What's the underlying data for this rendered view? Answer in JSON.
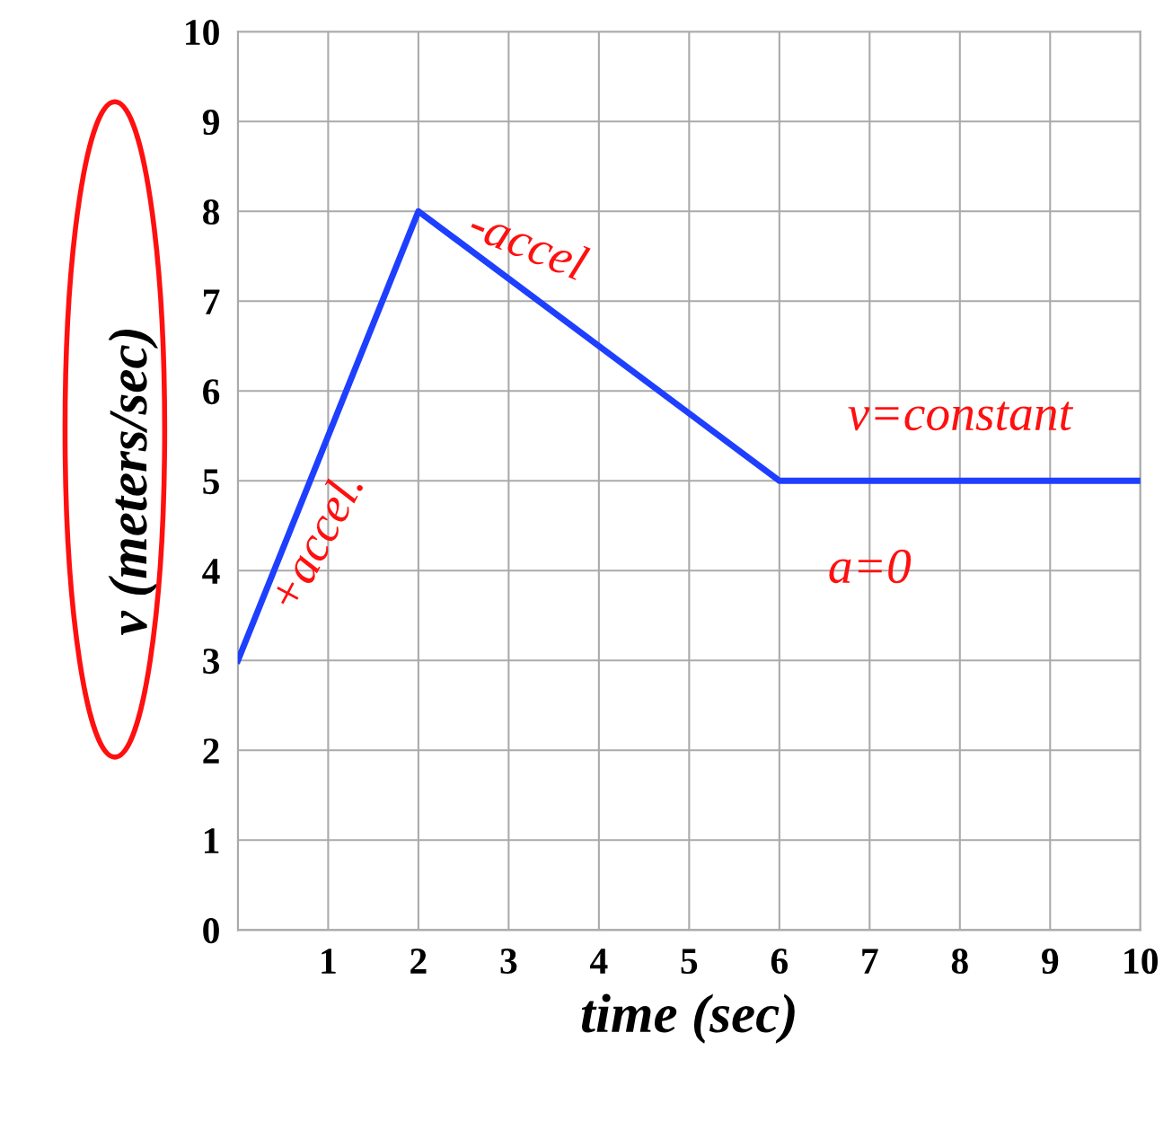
{
  "chart_data": {
    "type": "line",
    "xlabel": "time (sec)",
    "ylabel": "v (meters/sec)",
    "x": [
      0,
      2,
      6,
      10
    ],
    "series": [
      {
        "color": "#1f3fff",
        "values": [
          3,
          8,
          5,
          5
        ]
      }
    ],
    "xlim": [
      0,
      10
    ],
    "ylim": [
      0,
      10
    ],
    "xticks": [
      {
        "value": 0,
        "label": null
      },
      1,
      2,
      3,
      4,
      5,
      6,
      7,
      8,
      9,
      10
    ],
    "yticks": [
      0,
      1,
      2,
      3,
      4,
      5,
      6,
      7,
      8,
      9,
      10
    ],
    "grid": true,
    "marker": "none",
    "line_style": "solid",
    "annotations": [
      "+accel.",
      "-accel",
      "v=constant",
      "a=0"
    ]
  }
}
